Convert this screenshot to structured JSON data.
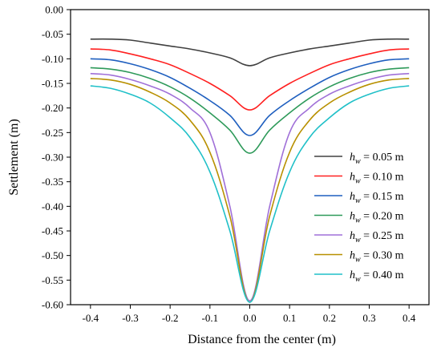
{
  "chart_data": {
    "type": "line",
    "title": "",
    "xlabel": "Distance from the center (m)",
    "ylabel": "Settlement (m)",
    "xlim": [
      -0.45,
      0.45
    ],
    "ylim": [
      -0.6,
      0.0
    ],
    "xticks": [
      -0.4,
      -0.3,
      -0.2,
      -0.1,
      0.0,
      0.1,
      0.2,
      0.3,
      0.4
    ],
    "yticks": [
      0.0,
      -0.05,
      -0.1,
      -0.15,
      -0.2,
      -0.25,
      -0.3,
      -0.35,
      -0.4,
      -0.45,
      -0.5,
      -0.55,
      -0.6
    ],
    "xtick_labels": [
      "-0.4",
      "-0.3",
      "-0.2",
      "-0.1",
      "0.0",
      "0.1",
      "0.2",
      "0.3",
      "0.4"
    ],
    "ytick_labels": [
      "0.00",
      "-0.05",
      "-0.10",
      "-0.15",
      "-0.20",
      "-0.25",
      "-0.30",
      "-0.35",
      "-0.40",
      "-0.45",
      "-0.50",
      "-0.55",
      "-0.60"
    ],
    "grid": false,
    "legend_position": "right",
    "x": [
      -0.4,
      -0.35,
      -0.3,
      -0.25,
      -0.2,
      -0.15,
      -0.1,
      -0.05,
      0.0,
      0.05,
      0.1,
      0.15,
      0.2,
      0.25,
      0.3,
      0.35,
      0.4
    ],
    "series": [
      {
        "name": "h_w = 0.05 m",
        "label_var": "h",
        "label_sub": "w",
        "label_rest": " = 0.05 m",
        "color": "#404040",
        "values": [
          -0.06,
          -0.06,
          -0.062,
          -0.068,
          -0.074,
          -0.08,
          -0.088,
          -0.098,
          -0.114,
          -0.098,
          -0.088,
          -0.08,
          -0.074,
          -0.068,
          -0.062,
          -0.06,
          -0.06
        ]
      },
      {
        "name": "h_w = 0.10 m",
        "label_var": "h",
        "label_sub": "w",
        "label_rest": " = 0.10 m",
        "color": "#ff2020",
        "values": [
          -0.08,
          -0.082,
          -0.09,
          -0.1,
          -0.112,
          -0.13,
          -0.15,
          -0.175,
          -0.204,
          -0.175,
          -0.15,
          -0.13,
          -0.112,
          -0.1,
          -0.09,
          -0.082,
          -0.08
        ]
      },
      {
        "name": "h_w = 0.15 m",
        "label_var": "h",
        "label_sub": "w",
        "label_rest": " = 0.15 m",
        "color": "#1f5fbf",
        "values": [
          -0.1,
          -0.102,
          -0.11,
          -0.122,
          -0.138,
          -0.16,
          -0.185,
          -0.215,
          -0.256,
          -0.215,
          -0.185,
          -0.16,
          -0.138,
          -0.122,
          -0.11,
          -0.102,
          -0.1
        ]
      },
      {
        "name": "h_w = 0.20 m",
        "label_var": "h",
        "label_sub": "w",
        "label_rest": " = 0.20 m",
        "color": "#2e9a5a",
        "values": [
          -0.118,
          -0.121,
          -0.128,
          -0.14,
          -0.157,
          -0.18,
          -0.21,
          -0.245,
          -0.292,
          -0.245,
          -0.21,
          -0.18,
          -0.157,
          -0.14,
          -0.128,
          -0.121,
          -0.118
        ]
      },
      {
        "name": "h_w = 0.25 m",
        "label_var": "h",
        "label_sub": "w",
        "label_rest": " = 0.25 m",
        "color": "#a070d8",
        "values": [
          -0.13,
          -0.133,
          -0.142,
          -0.155,
          -0.172,
          -0.2,
          -0.25,
          -0.4,
          -0.592,
          -0.4,
          -0.25,
          -0.2,
          -0.172,
          -0.155,
          -0.142,
          -0.133,
          -0.13
        ]
      },
      {
        "name": "h_w = 0.30 m",
        "label_var": "h",
        "label_sub": "w",
        "label_rest": " = 0.30 m",
        "color": "#b89000",
        "values": [
          -0.14,
          -0.143,
          -0.152,
          -0.168,
          -0.19,
          -0.225,
          -0.29,
          -0.42,
          -0.595,
          -0.42,
          -0.29,
          -0.225,
          -0.19,
          -0.168,
          -0.152,
          -0.143,
          -0.14
        ]
      },
      {
        "name": "h_w = 0.40 m",
        "label_var": "h",
        "label_sub": "w",
        "label_rest": " = 0.40 m",
        "color": "#20c0c8",
        "values": [
          -0.155,
          -0.16,
          -0.172,
          -0.19,
          -0.22,
          -0.26,
          -0.33,
          -0.45,
          -0.595,
          -0.45,
          -0.33,
          -0.26,
          -0.22,
          -0.19,
          -0.172,
          -0.16,
          -0.155
        ]
      }
    ]
  }
}
